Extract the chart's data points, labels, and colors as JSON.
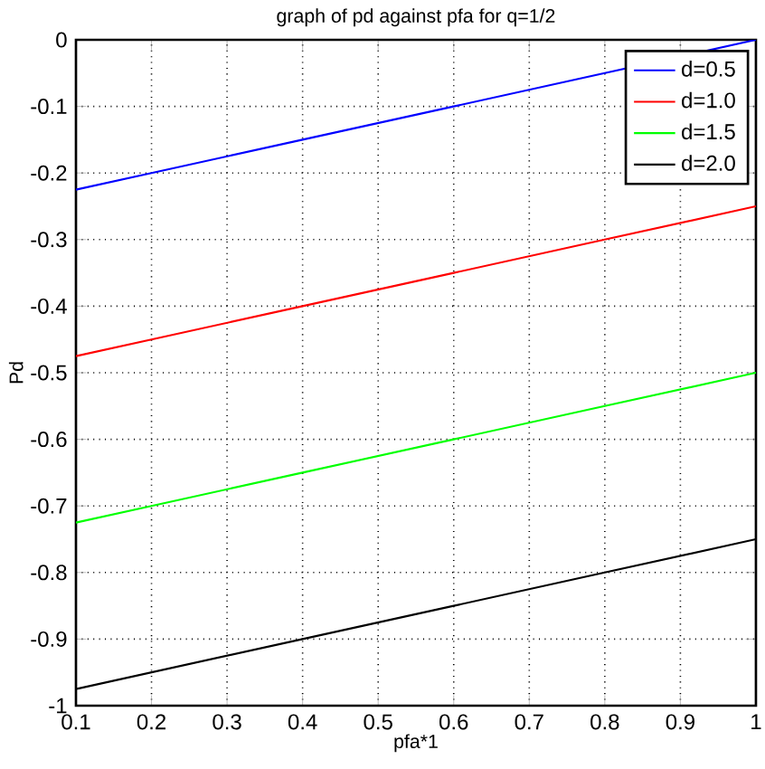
{
  "chart_data": {
    "type": "line",
    "title": "graph of pd against pfa for q=1/2",
    "xlabel": "pfa*1",
    "ylabel": "Pd",
    "series": [
      {
        "name": "d=0.5",
        "color": "#0000ff",
        "x": [
          0.1,
          0.2,
          0.4,
          0.6,
          0.8,
          1
        ],
        "values": [
          -0.225,
          -0.2,
          -0.15,
          -0.1,
          -0.05,
          0
        ]
      },
      {
        "name": "d=1.0",
        "color": "#ff0000",
        "x": [
          0.1,
          0.2,
          0.4,
          0.6,
          0.8,
          1
        ],
        "values": [
          -0.475,
          -0.45,
          -0.4,
          -0.35,
          -0.3,
          -0.25
        ]
      },
      {
        "name": "d=1.5",
        "color": "#00ff00",
        "x": [
          0.1,
          0.2,
          0.4,
          0.6,
          0.8,
          1
        ],
        "values": [
          -0.725,
          -0.7,
          -0.65,
          -0.6,
          -0.55,
          -0.5
        ]
      },
      {
        "name": "d=2.0",
        "color": "#000000",
        "x": [
          0.1,
          0.2,
          0.4,
          0.6,
          0.8,
          1
        ],
        "values": [
          -0.975,
          -0.95,
          -0.9,
          -0.85,
          -0.8,
          -0.75
        ]
      }
    ],
    "xlim": [
      0.1,
      1
    ],
    "ylim": [
      -1,
      0
    ],
    "xticks": [
      0.1,
      0.2,
      0.3,
      0.4,
      0.5,
      0.6,
      0.7,
      0.8,
      0.9,
      1
    ],
    "yticks": [
      -1,
      -0.9,
      -0.8,
      -0.7,
      -0.6,
      -0.5,
      -0.4,
      -0.3,
      -0.2,
      -0.1,
      0
    ],
    "grid": true,
    "legend": "top right",
    "marker": "none",
    "line_style": "solid"
  }
}
